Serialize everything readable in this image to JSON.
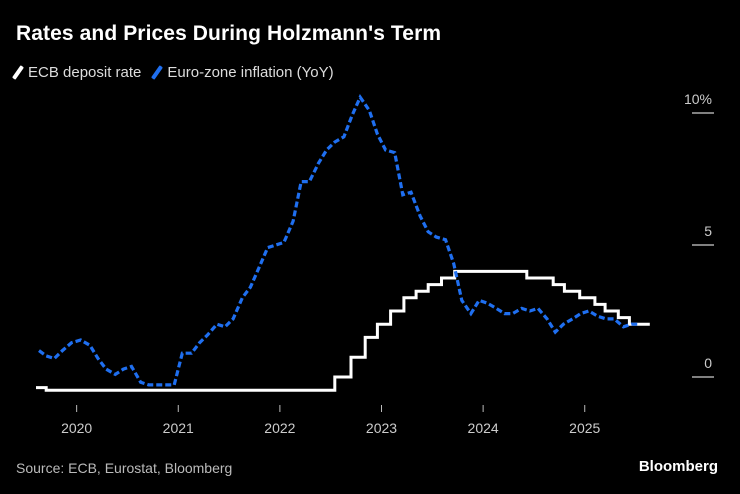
{
  "header": {
    "title": "Rates and Prices During Holzmann's Term"
  },
  "footer": {
    "source": "Source: ECB, Eurostat, Bloomberg",
    "brand": "Bloomberg"
  },
  "chart_data": {
    "type": "line",
    "title": "Rates and Prices During Holzmann's Term",
    "xlabel": "",
    "ylabel": "",
    "xlim": [
      2019.6,
      2025.78
    ],
    "ylim": [
      -0.5,
      10.5
    ],
    "x_ticks": [
      {
        "value": 2020,
        "label": "2020"
      },
      {
        "value": 2021,
        "label": "2021"
      },
      {
        "value": 2022,
        "label": "2022"
      },
      {
        "value": 2023,
        "label": "2023"
      },
      {
        "value": 2024,
        "label": "2024"
      },
      {
        "value": 2025,
        "label": "2025"
      }
    ],
    "y_ticks": [
      {
        "value": 0,
        "label": "0"
      },
      {
        "value": 5,
        "label": "5"
      },
      {
        "value": 10,
        "label": "10%"
      }
    ],
    "grid": false,
    "legend_position": "top-left",
    "series": [
      {
        "name": "ECB deposit rate",
        "color": "#ffffff",
        "style": "solid-step",
        "points": [
          [
            2019.6,
            -0.4
          ],
          [
            2019.7,
            -0.4
          ],
          [
            2019.7,
            -0.5
          ],
          [
            2022.5,
            -0.5
          ],
          [
            2022.54,
            -0.5
          ],
          [
            2022.54,
            0.0
          ],
          [
            2022.7,
            0.0
          ],
          [
            2022.7,
            0.75
          ],
          [
            2022.84,
            0.75
          ],
          [
            2022.84,
            1.5
          ],
          [
            2022.96,
            1.5
          ],
          [
            2022.96,
            2.0
          ],
          [
            2023.09,
            2.0
          ],
          [
            2023.09,
            2.5
          ],
          [
            2023.22,
            2.5
          ],
          [
            2023.22,
            3.0
          ],
          [
            2023.34,
            3.0
          ],
          [
            2023.34,
            3.25
          ],
          [
            2023.46,
            3.25
          ],
          [
            2023.46,
            3.5
          ],
          [
            2023.59,
            3.5
          ],
          [
            2023.59,
            3.75
          ],
          [
            2023.72,
            3.75
          ],
          [
            2023.72,
            4.0
          ],
          [
            2024.43,
            4.0
          ],
          [
            2024.43,
            3.75
          ],
          [
            2024.69,
            3.75
          ],
          [
            2024.69,
            3.5
          ],
          [
            2024.8,
            3.5
          ],
          [
            2024.8,
            3.25
          ],
          [
            2024.95,
            3.25
          ],
          [
            2024.95,
            3.0
          ],
          [
            2025.1,
            3.0
          ],
          [
            2025.1,
            2.75
          ],
          [
            2025.2,
            2.75
          ],
          [
            2025.2,
            2.5
          ],
          [
            2025.33,
            2.5
          ],
          [
            2025.33,
            2.25
          ],
          [
            2025.44,
            2.25
          ],
          [
            2025.44,
            2.0
          ],
          [
            2025.64,
            2.0
          ]
        ]
      },
      {
        "name": "Euro-zone inflation (YoY)",
        "color": "#1f6ff0",
        "style": "dashed",
        "points": [
          [
            2019.63,
            1.0
          ],
          [
            2019.7,
            0.8
          ],
          [
            2019.78,
            0.7
          ],
          [
            2019.86,
            1.0
          ],
          [
            2019.95,
            1.3
          ],
          [
            2020.04,
            1.4
          ],
          [
            2020.13,
            1.2
          ],
          [
            2020.21,
            0.7
          ],
          [
            2020.29,
            0.3
          ],
          [
            2020.38,
            0.1
          ],
          [
            2020.46,
            0.3
          ],
          [
            2020.54,
            0.4
          ],
          [
            2020.63,
            -0.2
          ],
          [
            2020.71,
            -0.3
          ],
          [
            2020.79,
            -0.3
          ],
          [
            2020.88,
            -0.3
          ],
          [
            2020.96,
            -0.3
          ],
          [
            2021.04,
            0.9
          ],
          [
            2021.13,
            0.9
          ],
          [
            2021.21,
            1.3
          ],
          [
            2021.29,
            1.6
          ],
          [
            2021.38,
            2.0
          ],
          [
            2021.46,
            1.9
          ],
          [
            2021.54,
            2.2
          ],
          [
            2021.63,
            3.0
          ],
          [
            2021.71,
            3.4
          ],
          [
            2021.79,
            4.1
          ],
          [
            2021.88,
            4.9
          ],
          [
            2021.96,
            5.0
          ],
          [
            2022.04,
            5.1
          ],
          [
            2022.13,
            5.9
          ],
          [
            2022.21,
            7.4
          ],
          [
            2022.29,
            7.4
          ],
          [
            2022.38,
            8.1
          ],
          [
            2022.46,
            8.6
          ],
          [
            2022.54,
            8.9
          ],
          [
            2022.63,
            9.1
          ],
          [
            2022.71,
            9.9
          ],
          [
            2022.79,
            10.6
          ],
          [
            2022.88,
            10.1
          ],
          [
            2022.96,
            9.2
          ],
          [
            2023.04,
            8.6
          ],
          [
            2023.13,
            8.5
          ],
          [
            2023.21,
            6.9
          ],
          [
            2023.29,
            7.0
          ],
          [
            2023.38,
            6.1
          ],
          [
            2023.46,
            5.5
          ],
          [
            2023.54,
            5.3
          ],
          [
            2023.63,
            5.2
          ],
          [
            2023.71,
            4.3
          ],
          [
            2023.79,
            2.9
          ],
          [
            2023.88,
            2.4
          ],
          [
            2023.96,
            2.9
          ],
          [
            2024.04,
            2.8
          ],
          [
            2024.13,
            2.6
          ],
          [
            2024.21,
            2.4
          ],
          [
            2024.29,
            2.4
          ],
          [
            2024.38,
            2.6
          ],
          [
            2024.46,
            2.5
          ],
          [
            2024.54,
            2.6
          ],
          [
            2024.63,
            2.2
          ],
          [
            2024.71,
            1.7
          ],
          [
            2024.79,
            2.0
          ],
          [
            2024.88,
            2.2
          ],
          [
            2024.96,
            2.4
          ],
          [
            2025.04,
            2.5
          ],
          [
            2025.13,
            2.3
          ],
          [
            2025.21,
            2.2
          ],
          [
            2025.29,
            2.2
          ],
          [
            2025.38,
            1.9
          ],
          [
            2025.46,
            2.0
          ],
          [
            2025.54,
            2.0
          ]
        ]
      }
    ]
  }
}
